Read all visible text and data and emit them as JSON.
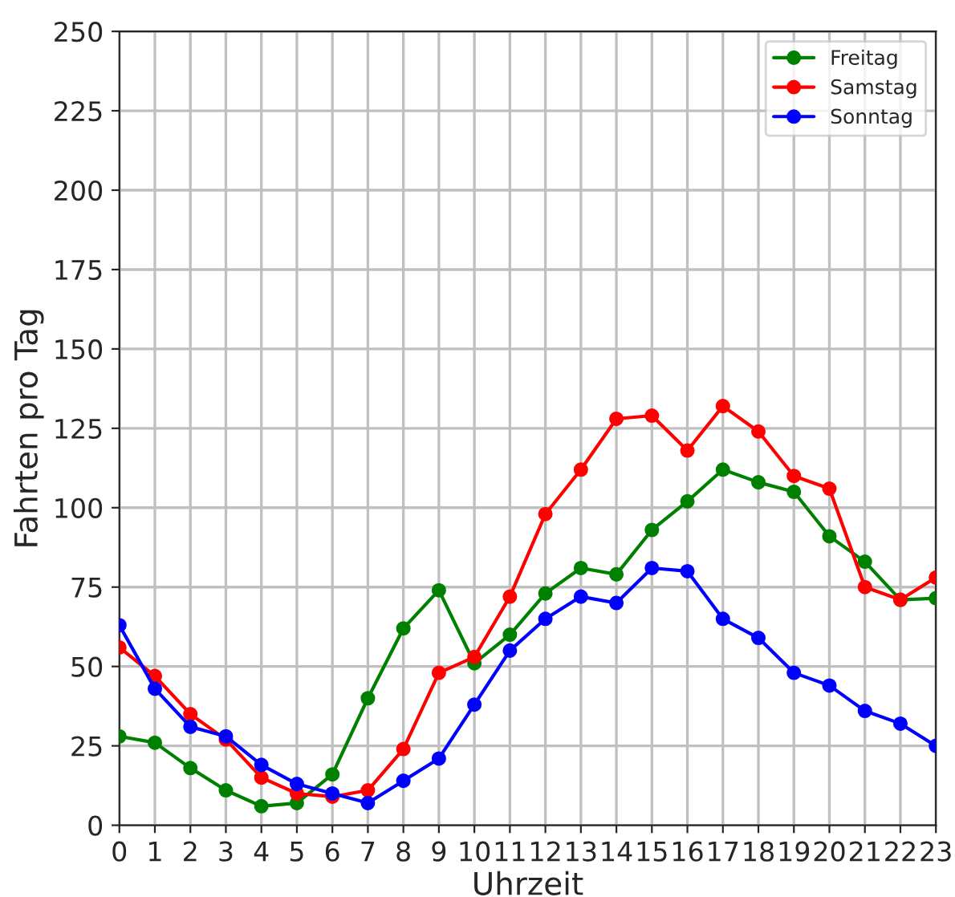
{
  "chart_data": {
    "type": "line",
    "xlabel": "Uhrzeit",
    "ylabel": "Fahrten pro Tag",
    "x": [
      0,
      1,
      2,
      3,
      4,
      5,
      6,
      7,
      8,
      9,
      10,
      11,
      12,
      13,
      14,
      15,
      16,
      17,
      18,
      19,
      20,
      21,
      22,
      23
    ],
    "series": [
      {
        "name": "Freitag",
        "color": "#008000",
        "values": [
          28,
          26,
          18,
          11,
          6,
          7,
          16,
          40,
          62,
          74,
          51,
          60,
          73,
          81,
          79,
          93,
          102,
          112,
          108,
          105,
          91,
          83,
          71,
          71.5
        ]
      },
      {
        "name": "Samstag",
        "color": "#ff0000",
        "values": [
          56,
          47,
          35,
          27,
          15,
          10,
          9,
          11,
          24,
          48,
          53,
          72,
          98,
          112,
          128,
          129,
          118,
          132,
          124,
          110,
          106,
          75,
          71,
          78
        ]
      },
      {
        "name": "Sonntag",
        "color": "#0000ff",
        "values": [
          63,
          43,
          31,
          28,
          19,
          13,
          10,
          7,
          14,
          21,
          38,
          55,
          65,
          72,
          70,
          81,
          80,
          65,
          59,
          48,
          44,
          36,
          32,
          25
        ]
      }
    ],
    "xlim": [
      0,
      23
    ],
    "xticks": [
      0,
      1,
      2,
      3,
      4,
      5,
      6,
      7,
      8,
      9,
      10,
      11,
      12,
      13,
      14,
      15,
      16,
      17,
      18,
      19,
      20,
      21,
      22,
      23
    ],
    "ylim": [
      0,
      250
    ],
    "yticks": [
      0,
      25,
      50,
      75,
      100,
      125,
      150,
      175,
      200,
      225,
      250
    ],
    "grid": true,
    "legend": "top right",
    "marker": "circle",
    "line_style": "solid"
  }
}
